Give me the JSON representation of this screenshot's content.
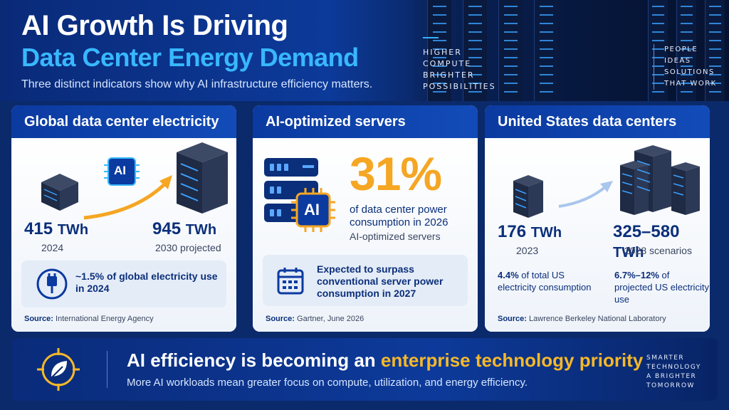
{
  "header": {
    "title_line1": "AI Growth Is Driving",
    "title_line2": "Data Center Energy Demand",
    "subtitle": "Three distinct indicators show why AI infrastructure efficiency matters.",
    "tagline_left": [
      "HIGHER",
      "COMPUTE",
      "BRIGHTER",
      "POSSIBILITIES"
    ],
    "tagline_right": [
      "PEOPLE",
      "IDEAS",
      "SOLUTIONS",
      "THAT WORK"
    ]
  },
  "cards": [
    {
      "title": "Global data center electricity",
      "chip_label": "AI",
      "left_value": "415",
      "left_unit": "TWh",
      "left_label": "2024",
      "right_value": "945",
      "right_unit": "TWh",
      "right_label": "2030 projected",
      "callout": "~1.5% of global electricity use in 2024",
      "source_label": "Source:",
      "source_text": "International Energy Agency"
    },
    {
      "title": "AI-optimized servers",
      "chip_label": "AI",
      "percent": "31%",
      "percent_desc": "of data center power consumption in 2026",
      "percent_sub": "AI-optimized servers",
      "callout": "Expected to surpass conventional server power consumption in 2027",
      "source_label": "Source:",
      "source_text": "Gartner, June 2026"
    },
    {
      "title": "United States data centers",
      "left_value": "176",
      "left_unit": "TWh",
      "left_label": "2023",
      "right_value": "325–580",
      "right_unit": "TWh",
      "right_label": "2028 scenarios",
      "left_stat_bold": "4.4%",
      "left_stat": "of total US electricity consumption",
      "right_stat_bold": "6.7%–12%",
      "right_stat": "of projected US electricity use",
      "source_label": "Source:",
      "source_text": "Lawrence Berkeley National Laboratory"
    }
  ],
  "banner": {
    "title_start": "AI efficiency is becoming an ",
    "title_highlight": "enterprise technology priority",
    "subtitle": "More AI workloads mean greater focus on compute, utilization, and energy efficiency.",
    "tagline": [
      "SMARTER",
      "TECHNOLOGY",
      "A BRIGHTER",
      "TOMORROW"
    ]
  },
  "colors": {
    "accent_blue": "#38b8ff",
    "accent_orange": "#f5a623",
    "navy": "#0b2f7a"
  },
  "icons": [
    "ai-chip-icon",
    "server-icon",
    "growth-arrow-icon",
    "plug-icon",
    "calendar-icon",
    "leaf-target-icon"
  ]
}
